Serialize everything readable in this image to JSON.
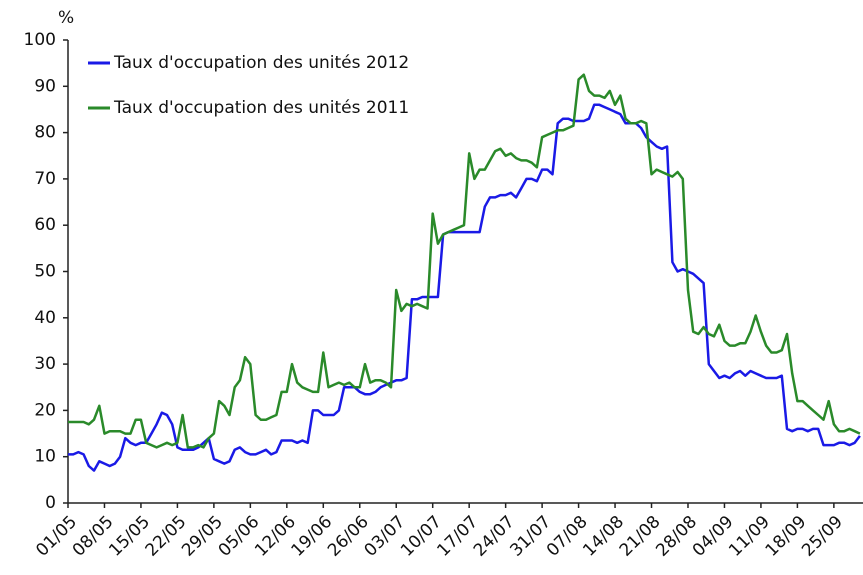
{
  "chart_data": {
    "type": "line",
    "y_label": "%",
    "ylim": [
      0,
      100
    ],
    "yticks": [
      0,
      10,
      20,
      30,
      40,
      50,
      60,
      70,
      80,
      90,
      100
    ],
    "legend": "upper left",
    "categories": [
      "01/05",
      null,
      null,
      null,
      null,
      null,
      null,
      "08/05",
      null,
      null,
      null,
      null,
      null,
      null,
      "15/05",
      null,
      null,
      null,
      null,
      null,
      null,
      "22/05",
      null,
      null,
      null,
      null,
      null,
      null,
      "29/05",
      null,
      null,
      null,
      null,
      null,
      null,
      "05/06",
      null,
      null,
      null,
      null,
      null,
      null,
      "12/06",
      null,
      null,
      null,
      null,
      null,
      null,
      "19/06",
      null,
      null,
      null,
      null,
      null,
      null,
      "26/06",
      null,
      null,
      null,
      null,
      null,
      null,
      "03/07",
      null,
      null,
      null,
      null,
      null,
      null,
      "10/07",
      null,
      null,
      null,
      null,
      null,
      null,
      "17/07",
      null,
      null,
      null,
      null,
      null,
      null,
      "24/07",
      null,
      null,
      null,
      null,
      null,
      null,
      "31/07",
      null,
      null,
      null,
      null,
      null,
      null,
      "07/08",
      null,
      null,
      null,
      null,
      null,
      null,
      "14/08",
      null,
      null,
      null,
      null,
      null,
      null,
      "21/08",
      null,
      null,
      null,
      null,
      null,
      null,
      "28/08",
      null,
      null,
      null,
      null,
      null,
      null,
      "04/09",
      null,
      null,
      null,
      null,
      null,
      null,
      "11/09",
      null,
      null,
      null,
      null,
      null,
      null,
      "18/09",
      null,
      null,
      null,
      null,
      null,
      null,
      "25/09",
      null,
      null,
      null,
      null,
      null
    ],
    "series": [
      {
        "name": "Taux d'occupation des unités 2012",
        "color": "#1a1ae6",
        "values": [
          10.5,
          10.5,
          11,
          10.5,
          8,
          7,
          9,
          8.5,
          8,
          8.5,
          10,
          14,
          13,
          12.5,
          13,
          13,
          15,
          17,
          19.5,
          19,
          17,
          12,
          11.5,
          11.5,
          11.5,
          12,
          13,
          14,
          9.5,
          9,
          8.5,
          9,
          11.5,
          12,
          11,
          10.5,
          10.5,
          11,
          11.5,
          10.5,
          11,
          13.5,
          13.5,
          13.5,
          13,
          13.5,
          13,
          20,
          20,
          19,
          19,
          19,
          20,
          25,
          25,
          25,
          24,
          23.5,
          23.5,
          24,
          25,
          25.5,
          26,
          26.5,
          26.5,
          27,
          44,
          44,
          44.5,
          44.5,
          44.5,
          44.5,
          58,
          58.5,
          58.5,
          58.5,
          58.5,
          58.5,
          58.5,
          58.5,
          64,
          66,
          66,
          66.5,
          66.5,
          67,
          66,
          68,
          70,
          70,
          69.5,
          72,
          72,
          71,
          82,
          83,
          83,
          82.5,
          82.5,
          82.5,
          83,
          86,
          86,
          85.5,
          85,
          84.5,
          84,
          82,
          82,
          82,
          81,
          79,
          78,
          77,
          76.5,
          77,
          52,
          50,
          50.5,
          50,
          49.5,
          48.5,
          47.5,
          30,
          28.5,
          27,
          27.5,
          27,
          28,
          28.5,
          27.5,
          28.5,
          28,
          27.5,
          27,
          27,
          27,
          27.5,
          16,
          15.5,
          16,
          16,
          15.5,
          16,
          16,
          12.5,
          12.5,
          12.5,
          13,
          13,
          12.5,
          13,
          14.5
        ]
      },
      {
        "name": "Taux d'occupation des unités 2011",
        "color": "#2a8a2a",
        "values": [
          17.5,
          17.5,
          17.5,
          17.5,
          17,
          18,
          21,
          15,
          15.5,
          15.5,
          15.5,
          15,
          15,
          18,
          18,
          13,
          12.5,
          12,
          12.5,
          13,
          12.5,
          13,
          19,
          12,
          12,
          12.5,
          12,
          14,
          15,
          22,
          21,
          19,
          25,
          26.5,
          31.5,
          30,
          19,
          18,
          18,
          18.5,
          19,
          24,
          24,
          30,
          26,
          25,
          24.5,
          24,
          24,
          32.5,
          25,
          25.5,
          26,
          25.5,
          26,
          25,
          25,
          30,
          26,
          26.5,
          26.5,
          26,
          25,
          46,
          41.5,
          43,
          42.5,
          43,
          42.5,
          42,
          62.5,
          56,
          58,
          58.5,
          59,
          59.5,
          60,
          75.5,
          70,
          72,
          72,
          74,
          76,
          76.5,
          75,
          75.5,
          74.5,
          74,
          74,
          73.5,
          72.5,
          79,
          79.5,
          80,
          80.5,
          80.5,
          81,
          81.5,
          91.5,
          92.5,
          89,
          88,
          88,
          87.5,
          89,
          86,
          88,
          83,
          82,
          82,
          82.5,
          82,
          71,
          72,
          71.5,
          71,
          70.5,
          71.5,
          70,
          46,
          37,
          36.5,
          38,
          36.5,
          36,
          38.5,
          35,
          34,
          34,
          34.5,
          34.5,
          37,
          40.5,
          37,
          34,
          32.5,
          32.5,
          33,
          36.5,
          28,
          22,
          22,
          21,
          20,
          19,
          18,
          22,
          17,
          15.5,
          15.5,
          16,
          15.5,
          15
        ]
      }
    ]
  }
}
